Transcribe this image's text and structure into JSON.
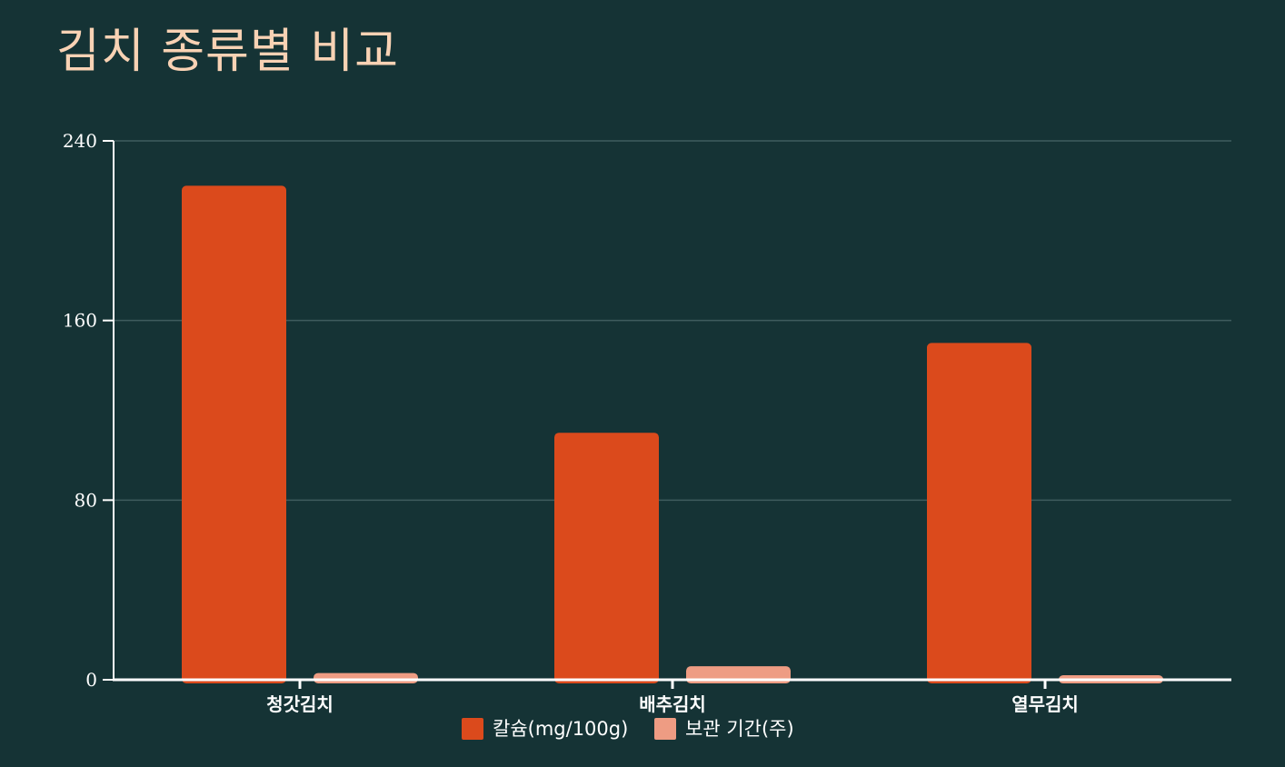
{
  "chart_data": {
    "type": "bar",
    "title": "김치 종류별 비교",
    "xlabel": "",
    "ylabel": "",
    "categories": [
      "청갓김치",
      "배추김치",
      "열무김치"
    ],
    "series": [
      {
        "name": "칼슘(mg/100g)",
        "values": [
          220,
          110,
          150
        ],
        "color": "#db4a1c"
      },
      {
        "name": "보관 기간(주)",
        "values": [
          3,
          6,
          2
        ],
        "color": "#ee9c83"
      }
    ],
    "ylim": [
      0,
      240
    ],
    "yticks": [
      0,
      80,
      160,
      240
    ],
    "grid": true,
    "legend": "bottom-center",
    "colors": {
      "background": "#153335",
      "title": "#f8d2b4",
      "grid": "#3f5c5e",
      "axis": "#ffffff"
    }
  }
}
